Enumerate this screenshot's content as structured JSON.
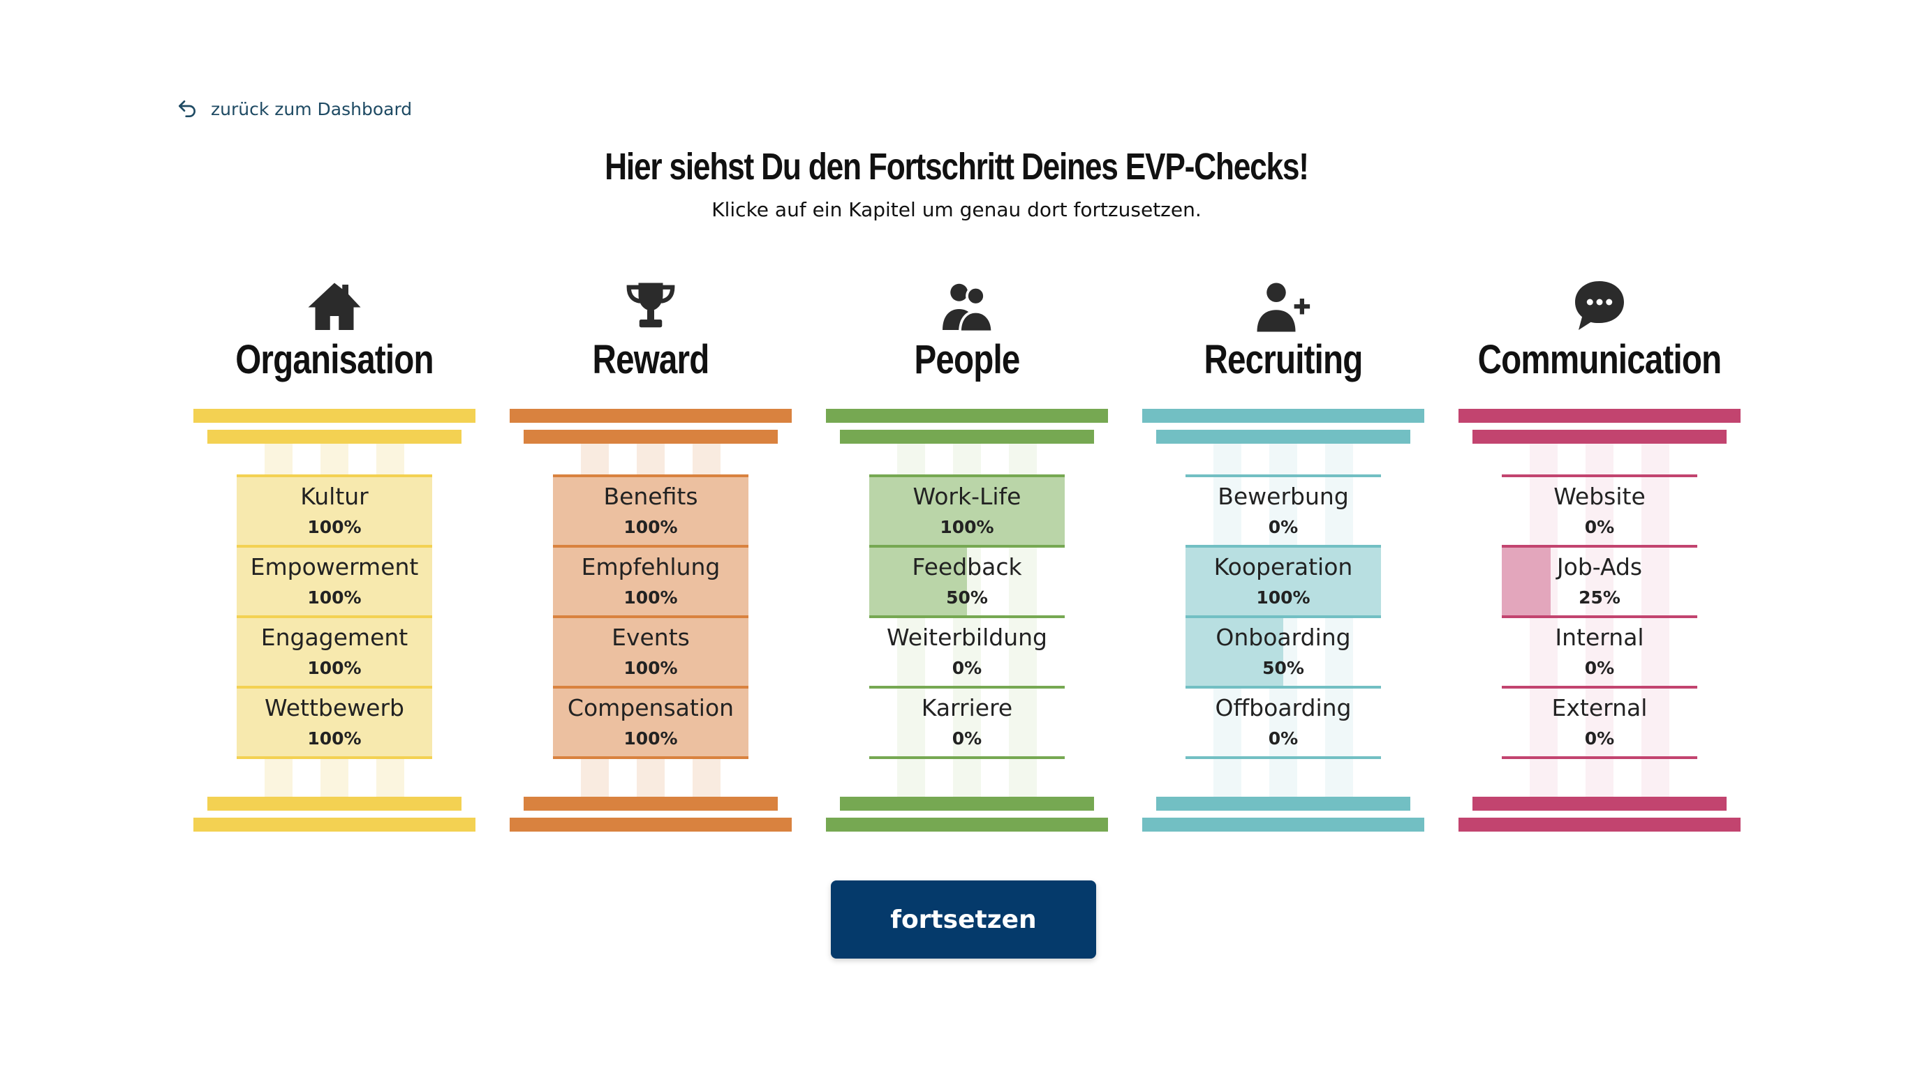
{
  "back_link": {
    "label": "zurück zum Dashboard"
  },
  "title": "Hier siehst Du den Fortschritt Deines EVP-Checks!",
  "subtitle": "Klicke auf ein Kapitel um genau dort fortzusetzen.",
  "pillars": [
    {
      "title": "Organisation",
      "icon": "home-icon",
      "color": "#f3d152",
      "fill_color": "#f7e9ae",
      "stripe_color": "#fbf5df",
      "chapters": [
        {
          "name": "Kultur",
          "progress": 100,
          "label": "100%"
        },
        {
          "name": "Empowerment",
          "progress": 100,
          "label": "100%"
        },
        {
          "name": "Engagement",
          "progress": 100,
          "label": "100%"
        },
        {
          "name": "Wettbewerb",
          "progress": 100,
          "label": "100%"
        }
      ]
    },
    {
      "title": "Reward",
      "icon": "trophy-icon",
      "color": "#d9823f",
      "fill_color": "#ecc0a0",
      "stripe_color": "#f9ebe0",
      "chapters": [
        {
          "name": "Benefits",
          "progress": 100,
          "label": "100%"
        },
        {
          "name": "Empfehlung",
          "progress": 100,
          "label": "100%"
        },
        {
          "name": "Events",
          "progress": 100,
          "label": "100%"
        },
        {
          "name": "Compensation",
          "progress": 100,
          "label": "100%"
        }
      ]
    },
    {
      "title": "People",
      "icon": "people-icon",
      "color": "#76a852",
      "fill_color": "#bad5a8",
      "stripe_color": "#f3f8ee",
      "chapters": [
        {
          "name": "Work-Life",
          "progress": 100,
          "label": "100%"
        },
        {
          "name": "Feedback",
          "progress": 50,
          "label": "50%"
        },
        {
          "name": "Weiterbildung",
          "progress": 0,
          "label": "0%"
        },
        {
          "name": "Karriere",
          "progress": 0,
          "label": "0%"
        }
      ]
    },
    {
      "title": "Recruiting",
      "icon": "user-plus-icon",
      "color": "#72bfc3",
      "fill_color": "#b8dfe1",
      "stripe_color": "#f0f8f9",
      "chapters": [
        {
          "name": "Bewerbung",
          "progress": 0,
          "label": "0%"
        },
        {
          "name": "Kooperation",
          "progress": 100,
          "label": "100%"
        },
        {
          "name": "Onboarding",
          "progress": 50,
          "label": "50%"
        },
        {
          "name": "Offboarding",
          "progress": 0,
          "label": "0%"
        }
      ]
    },
    {
      "title": "Communication",
      "icon": "chat-bubble-icon",
      "color": "#c2446f",
      "fill_color": "#e3a6bc",
      "stripe_color": "#fbf0f4",
      "chapters": [
        {
          "name": "Website",
          "progress": 0,
          "label": "0%"
        },
        {
          "name": "Job-Ads",
          "progress": 25,
          "label": "25%"
        },
        {
          "name": "Internal",
          "progress": 0,
          "label": "0%"
        },
        {
          "name": "External",
          "progress": 0,
          "label": "0%"
        }
      ]
    }
  ],
  "continue_button": {
    "label": "fortsetzen",
    "color": "#053a6b"
  }
}
